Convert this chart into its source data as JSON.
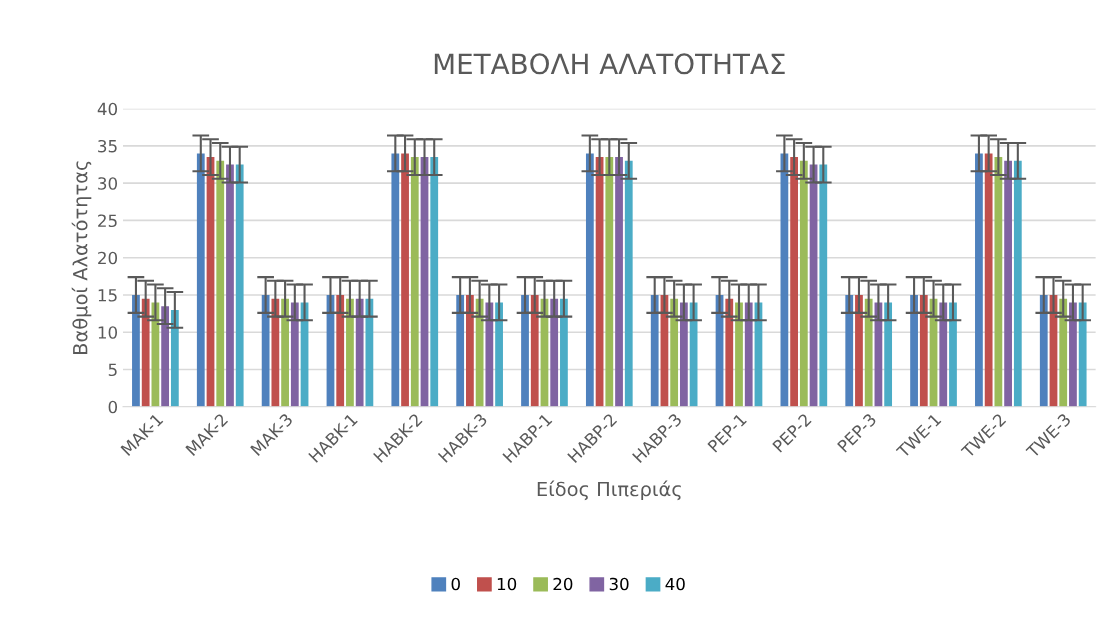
{
  "chart_data": {
    "type": "bar",
    "title": "ΜΕΤΑΒΟΛΗ ΑΛΑΤΟΤΗΤΑΣ",
    "xlabel": "Είδος Πιπεριάς",
    "ylabel": "Βαθμοί Αλατότητας",
    "categories": [
      "MAK-1",
      "MAK-2",
      "MAK-3",
      "HABK-1",
      "HABK-2",
      "HABK-3",
      "HABP-1",
      "HABP-2",
      "HABP-3",
      "PEP-1",
      "PEP-2",
      "PEP-3",
      "TWE-1",
      "TWE-2",
      "TWE-3"
    ],
    "series": [
      {
        "name": "0",
        "color": "#4f81bd",
        "values": [
          15,
          34,
          15,
          15,
          34,
          15,
          15,
          34,
          15,
          15,
          34,
          15,
          15,
          34,
          15
        ],
        "errors": [
          2.4,
          2.4,
          2.4,
          2.4,
          2.4,
          2.4,
          2.4,
          2.4,
          2.4,
          2.4,
          2.4,
          2.4,
          2.4,
          2.4,
          2.4
        ]
      },
      {
        "name": "10",
        "color": "#c0504d",
        "values": [
          14.5,
          33.5,
          14.5,
          15,
          34,
          15,
          15,
          33.5,
          15,
          14.5,
          33.5,
          15,
          15,
          34,
          15
        ],
        "errors": [
          2.4,
          2.4,
          2.4,
          2.4,
          2.4,
          2.4,
          2.4,
          2.4,
          2.4,
          2.4,
          2.4,
          2.4,
          2.4,
          2.4,
          2.4
        ]
      },
      {
        "name": "20",
        "color": "#9bbb59",
        "values": [
          14,
          33,
          14.5,
          14.5,
          33.5,
          14.5,
          14.5,
          33.5,
          14.5,
          14,
          33,
          14.5,
          14.5,
          33.5,
          14.5
        ],
        "errors": [
          2.4,
          2.4,
          2.4,
          2.4,
          2.4,
          2.4,
          2.4,
          2.4,
          2.4,
          2.4,
          2.4,
          2.4,
          2.4,
          2.4,
          2.4
        ]
      },
      {
        "name": "30",
        "color": "#8064a2",
        "values": [
          13.5,
          32.5,
          14,
          14.5,
          33.5,
          14,
          14.5,
          33.5,
          14,
          14,
          32.5,
          14,
          14,
          33,
          14
        ],
        "errors": [
          2.4,
          2.4,
          2.4,
          2.4,
          2.4,
          2.4,
          2.4,
          2.4,
          2.4,
          2.4,
          2.4,
          2.4,
          2.4,
          2.4,
          2.4
        ]
      },
      {
        "name": "40",
        "color": "#4bacc6",
        "values": [
          13,
          32.5,
          14,
          14.5,
          33.5,
          14,
          14.5,
          33,
          14,
          14,
          32.5,
          14,
          14,
          33,
          14
        ],
        "errors": [
          2.4,
          2.4,
          2.4,
          2.4,
          2.4,
          2.4,
          2.4,
          2.4,
          2.4,
          2.4,
          2.4,
          2.4,
          2.4,
          2.4,
          2.4
        ]
      }
    ],
    "ylim": [
      0,
      40
    ],
    "yticks": [
      0,
      5,
      10,
      15,
      20,
      25,
      30,
      35,
      40
    ],
    "grid": "y",
    "legend": "bottom"
  }
}
